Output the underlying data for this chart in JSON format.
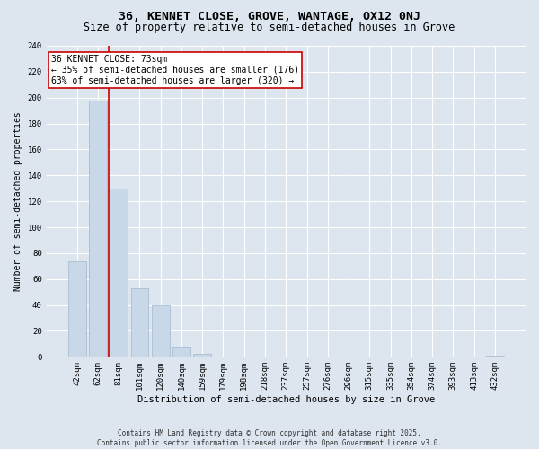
{
  "title": "36, KENNET CLOSE, GROVE, WANTAGE, OX12 0NJ",
  "subtitle": "Size of property relative to semi-detached houses in Grove",
  "xlabel": "Distribution of semi-detached houses by size in Grove",
  "ylabel": "Number of semi-detached properties",
  "bar_labels": [
    "42sqm",
    "62sqm",
    "81sqm",
    "101sqm",
    "120sqm",
    "140sqm",
    "159sqm",
    "179sqm",
    "198sqm",
    "218sqm",
    "237sqm",
    "257sqm",
    "276sqm",
    "296sqm",
    "315sqm",
    "335sqm",
    "354sqm",
    "374sqm",
    "393sqm",
    "413sqm",
    "432sqm"
  ],
  "bar_values": [
    74,
    198,
    130,
    53,
    40,
    8,
    2,
    0,
    0,
    0,
    0,
    0,
    0,
    0,
    0,
    0,
    0,
    0,
    0,
    0,
    1
  ],
  "bar_color": "#c8d8e8",
  "bar_edge_color": "#a0b8cc",
  "red_line_x": 1.5,
  "red_line_color": "#cc0000",
  "annotation_text": "36 KENNET CLOSE: 73sqm\n← 35% of semi-detached houses are smaller (176)\n63% of semi-detached houses are larger (320) →",
  "annotation_box_color": "#ffffff",
  "annotation_border_color": "#cc0000",
  "ylim": [
    0,
    240
  ],
  "yticks": [
    0,
    20,
    40,
    60,
    80,
    100,
    120,
    140,
    160,
    180,
    200,
    220,
    240
  ],
  "background_color": "#dde5ee",
  "footer_line1": "Contains HM Land Registry data © Crown copyright and database right 2025.",
  "footer_line2": "Contains public sector information licensed under the Open Government Licence v3.0.",
  "title_fontsize": 9.5,
  "subtitle_fontsize": 8.5,
  "xlabel_fontsize": 7.5,
  "ylabel_fontsize": 7,
  "tick_fontsize": 6.5,
  "annotation_fontsize": 7,
  "footer_fontsize": 5.5
}
